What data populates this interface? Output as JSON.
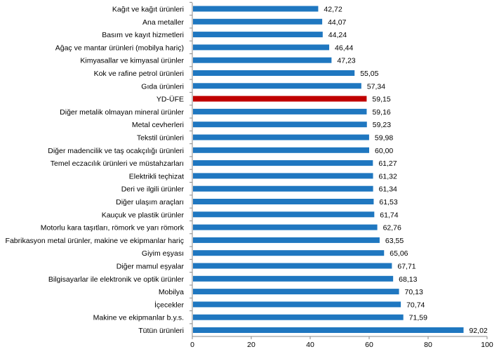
{
  "chart_data": {
    "type": "bar",
    "orientation": "horizontal",
    "title": "",
    "xlabel": "",
    "ylabel": "",
    "xlim": [
      0,
      100
    ],
    "xticks": [
      0,
      20,
      40,
      60,
      80,
      100
    ],
    "grid": false,
    "legend": "none",
    "colors": {
      "default": "#1F77C0",
      "highlight": "#C00000"
    },
    "highlight_category": "YD-ÜFE",
    "categories": [
      "Kağıt ve kağıt ürünleri",
      "Ana metaller",
      "Basım ve kayıt hizmetleri",
      "Ağaç ve mantar ürünleri (mobilya hariç)",
      "Kimyasallar ve kimyasal ürünler",
      "Kok ve rafine petrol ürünleri",
      "Gıda ürünleri",
      "YD-ÜFE",
      "Diğer metalik olmayan mineral ürünler",
      "Metal cevherleri",
      "Tekstil ürünleri",
      "Diğer madencilik ve taş ocakçılığı ürünleri",
      "Temel eczacılık ürünleri ve müstahzarları",
      "Elektrikli teçhizat",
      "Deri ve ilgili ürünler",
      "Diğer ulaşım araçları",
      "Kauçuk ve plastik ürünler",
      "Motorlu kara taşıtları, römork ve yarı römork",
      "Fabrikasyon metal ürünler, makine ve ekipmanlar hariç",
      "Giyim eşyası",
      "Diğer mamul eşyalar",
      "Bilgisayarlar ile elektronik ve optik ürünler",
      "Mobilya",
      "İçecekler",
      "Makine ve ekipmanlar b.y.s.",
      "Tütün ürünleri"
    ],
    "values": [
      42.72,
      44.07,
      44.24,
      46.44,
      47.23,
      55.05,
      57.34,
      59.15,
      59.16,
      59.23,
      59.98,
      60.0,
      61.27,
      61.32,
      61.34,
      61.53,
      61.74,
      62.76,
      63.55,
      65.06,
      67.71,
      68.13,
      70.13,
      70.74,
      71.59,
      92.02
    ],
    "value_labels": [
      "42,72",
      "44,07",
      "44,24",
      "46,44",
      "47,23",
      "55,05",
      "57,34",
      "59,15",
      "59,16",
      "59,23",
      "59,98",
      "60,00",
      "61,27",
      "61,32",
      "61,34",
      "61,53",
      "61,74",
      "62,76",
      "63,55",
      "65,06",
      "67,71",
      "68,13",
      "70,13",
      "70,74",
      "71,59",
      "92,02"
    ]
  }
}
